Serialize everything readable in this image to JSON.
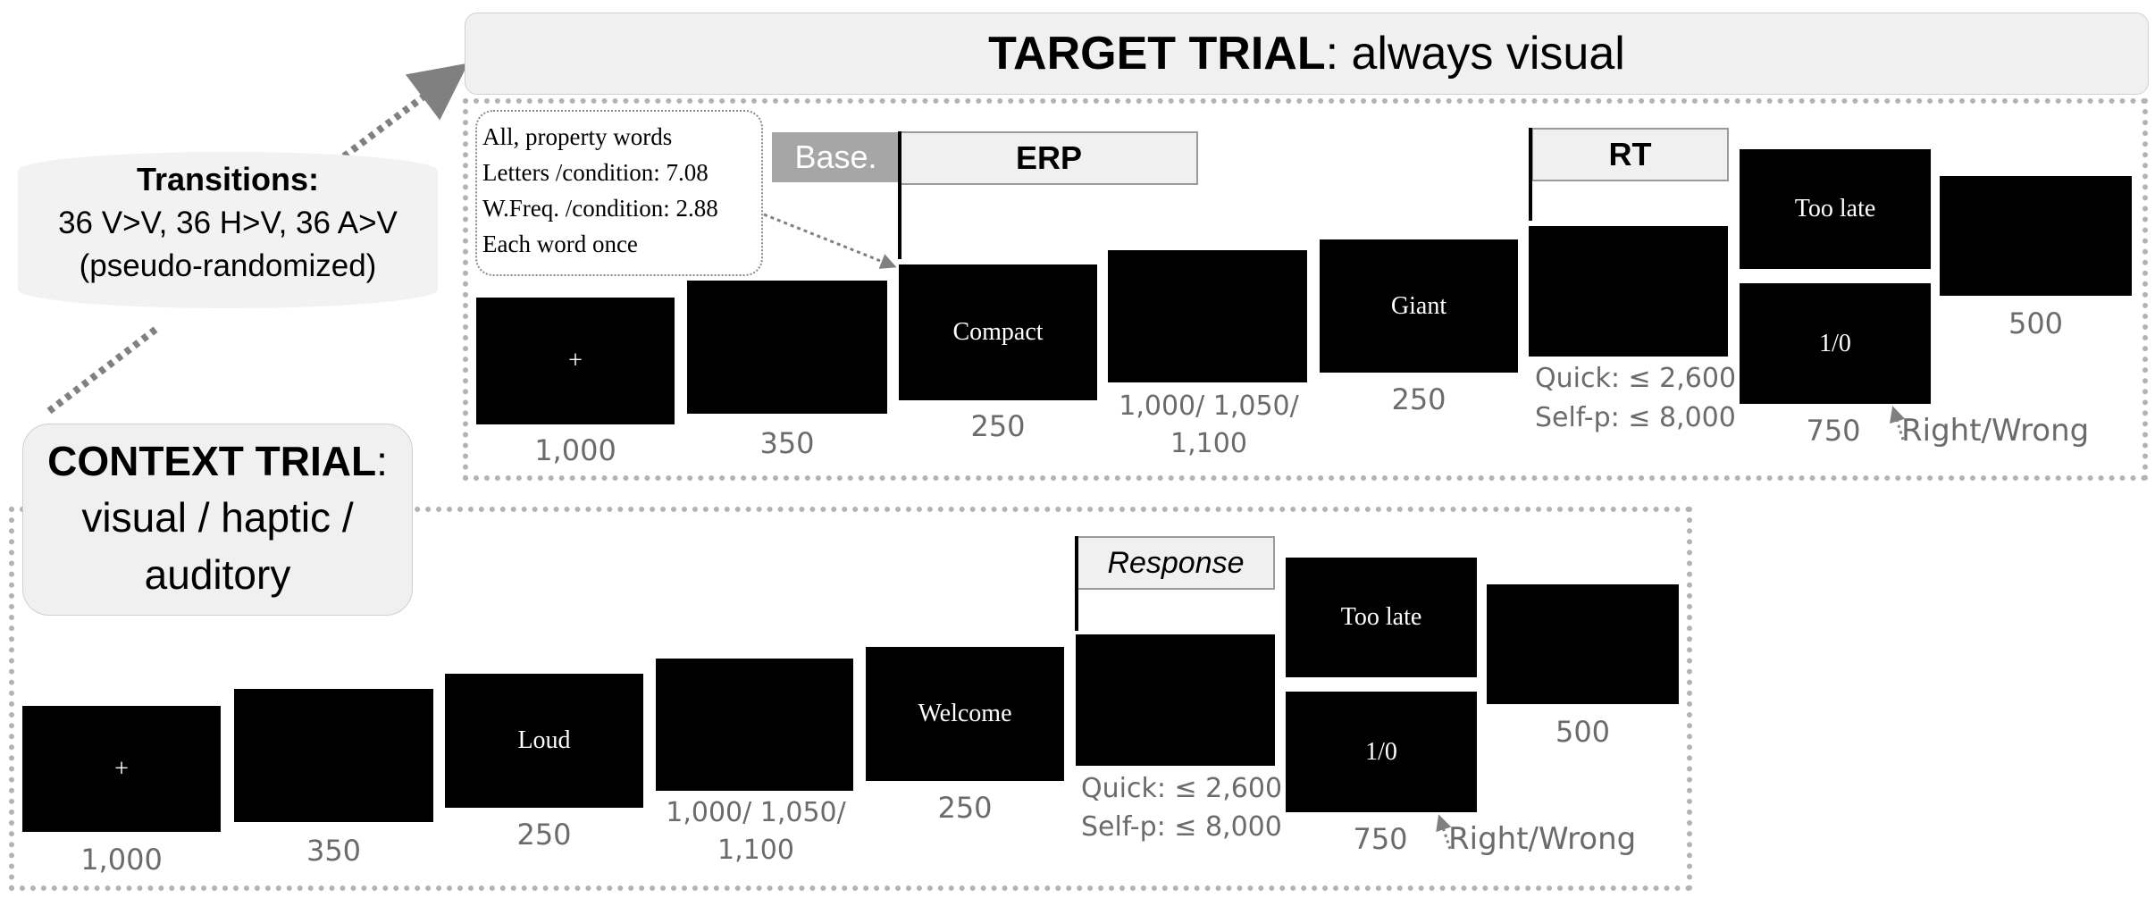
{
  "target": {
    "title_bold": "TARGET TRIAL",
    "title_rest": ": always visual",
    "info_lines": [
      "All, property words",
      "Letters /condition: 7.08",
      "W.Freq. /condition: 2.88",
      "Each word once"
    ],
    "baseline_label": "Base.",
    "erp_label": "ERP",
    "rt_label": "RT",
    "screens": [
      "+",
      "",
      "Compact",
      "",
      "Giant",
      "",
      "Too late",
      "1/0",
      ""
    ],
    "durations": {
      "fixation": "1,000",
      "blank": "350",
      "word": "250",
      "isi": "1,000/ 1,050/ 1,100",
      "word2": "250",
      "response_quick": "Quick: ≤ 2,600",
      "response_self": "Self-p: ≤ 8,000",
      "feedback": "750",
      "feedback_note": "Right/Wrong",
      "end": "500"
    }
  },
  "transitions": {
    "title": "Transitions:",
    "line1": "36 V>V, 36 H>V, 36 A>V",
    "line2": "(pseudo-randomized)"
  },
  "context": {
    "title_bold": "CONTEXT TRIAL",
    "title_colon": ":",
    "line2": "visual / haptic /",
    "line3": "auditory",
    "response_label": "Response",
    "screens": [
      "+",
      "",
      "Loud",
      "",
      "Welcome",
      "",
      "Too late",
      "1/0",
      ""
    ],
    "durations": {
      "fixation": "1,000",
      "blank": "350",
      "word": "250",
      "isi": "1,000/ 1,050/ 1,100",
      "word2": "250",
      "response_quick": "Quick: ≤ 2,600",
      "response_self": "Self-p: ≤ 8,000",
      "feedback": "750",
      "feedback_note": "Right/Wrong",
      "end": "500"
    }
  }
}
